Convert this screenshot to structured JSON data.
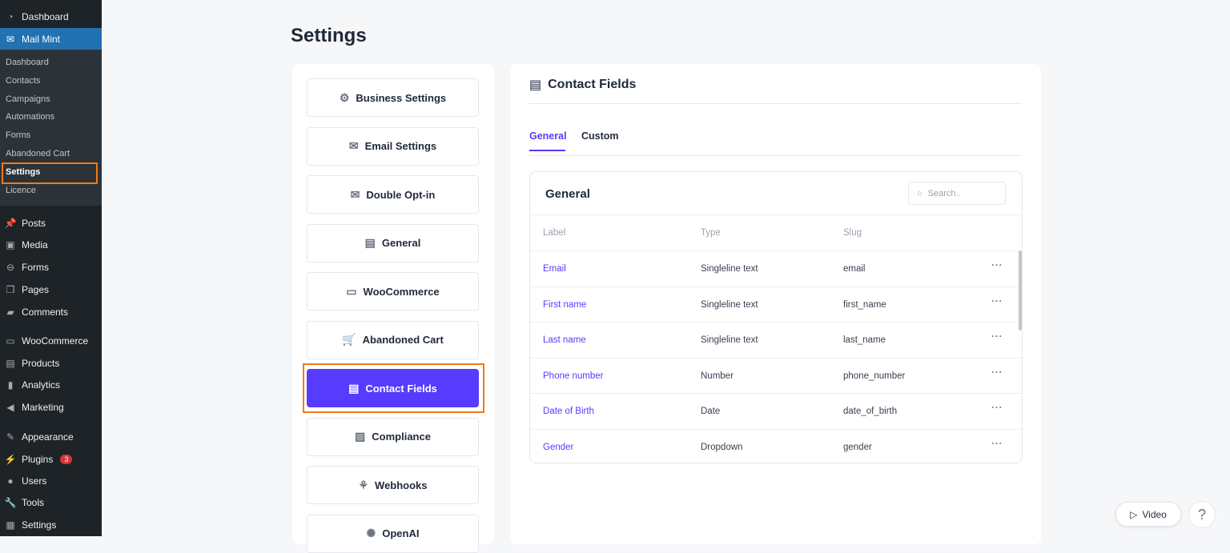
{
  "sidebar": {
    "top": {
      "label": "Dashboard",
      "icon": "dashboard-icon"
    },
    "mailmint": {
      "label": "Mail Mint",
      "icon": "mail-icon"
    },
    "submenu": [
      "Dashboard",
      "Contacts",
      "Campaigns",
      "Automations",
      "Forms",
      "Abandoned Cart",
      "Settings",
      "Licence"
    ],
    "items": [
      {
        "label": "Posts",
        "icon": "pin-icon"
      },
      {
        "label": "Media",
        "icon": "media-icon"
      },
      {
        "label": "Forms",
        "icon": "forms-icon"
      },
      {
        "label": "Pages",
        "icon": "pages-icon"
      },
      {
        "label": "Comments",
        "icon": "comment-icon"
      },
      {
        "label": "WooCommerce",
        "icon": "woo-icon"
      },
      {
        "label": "Products",
        "icon": "archive-icon"
      },
      {
        "label": "Analytics",
        "icon": "chart-icon"
      },
      {
        "label": "Marketing",
        "icon": "megaphone-icon"
      },
      {
        "label": "Appearance",
        "icon": "brush-icon"
      },
      {
        "label": "Plugins",
        "icon": "plug-icon",
        "badge": "3"
      },
      {
        "label": "Users",
        "icon": "user-icon"
      },
      {
        "label": "Tools",
        "icon": "wrench-icon"
      },
      {
        "label": "Settings",
        "icon": "settings-icon"
      }
    ]
  },
  "page_title": "Settings",
  "settings_nav": [
    {
      "label": "Business Settings",
      "icon": "gear-icon"
    },
    {
      "label": "Email Settings",
      "icon": "envelope-icon"
    },
    {
      "label": "Double Opt-in",
      "icon": "envelope-check-icon"
    },
    {
      "label": "General",
      "icon": "document-icon"
    },
    {
      "label": "WooCommerce",
      "icon": "woo-icon"
    },
    {
      "label": "Abandoned Cart",
      "icon": "cart-icon"
    },
    {
      "label": "Contact Fields",
      "icon": "contact-fields-icon",
      "active": true
    },
    {
      "label": "Compliance",
      "icon": "shield-doc-icon"
    },
    {
      "label": "Webhooks",
      "icon": "webhook-icon"
    },
    {
      "label": "OpenAI",
      "icon": "openai-icon"
    }
  ],
  "panel": {
    "title": "Contact Fields",
    "tabs": [
      "General",
      "Custom"
    ],
    "table": {
      "title": "General",
      "search_placeholder": "Search..",
      "columns": [
        "Label",
        "Type",
        "Slug"
      ],
      "rows": [
        [
          "Email",
          "Singleline text",
          "email"
        ],
        [
          "First name",
          "Singleline text",
          "first_name"
        ],
        [
          "Last name",
          "Singleline text",
          "last_name"
        ],
        [
          "Phone number",
          "Number",
          "phone_number"
        ],
        [
          "Date of Birth",
          "Date",
          "date_of_birth"
        ],
        [
          "Gender",
          "Dropdown",
          "gender"
        ]
      ]
    }
  },
  "video_label": "Video",
  "help_label": "?",
  "colors": {
    "accent": "#573bff",
    "wp_sidebar": "#1d2327",
    "wp_active": "#2271b1",
    "highlight": "#f07a1a"
  }
}
